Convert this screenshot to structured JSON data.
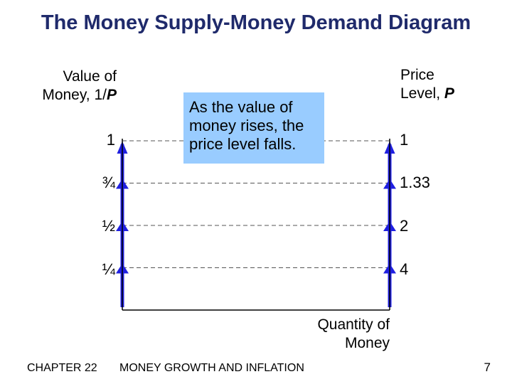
{
  "title": "The Money Supply-Money Demand Diagram",
  "left_axis": {
    "title_line1": "Value of",
    "title_line2": "Money, 1/",
    "title_var": "P",
    "ticks": [
      "1",
      "¾",
      "½",
      "¼"
    ]
  },
  "right_axis": {
    "title_line1": "Price",
    "title_line2": "Level, ",
    "title_var": "P",
    "ticks": [
      "1",
      "1.33",
      "2",
      "4"
    ]
  },
  "callout": {
    "line1": "As the value of",
    "line2": "money rises, the",
    "line3": "price level falls."
  },
  "x_axis": {
    "line1": "Quantity of",
    "line2": "Money"
  },
  "footer": {
    "chapter": "CHAPTER 22",
    "topic": "MONEY GROWTH AND INFLATION",
    "page": "7"
  },
  "chart_data": {
    "type": "diagram",
    "value_of_money_levels": [
      1,
      0.75,
      0.5,
      0.25
    ],
    "price_levels": [
      1,
      1.33,
      2,
      4
    ],
    "colors": {
      "arrow": "#1f1fe0",
      "callout_fill": "#99ccff",
      "title": "#1f2a6b",
      "gridline": "#555555"
    }
  }
}
